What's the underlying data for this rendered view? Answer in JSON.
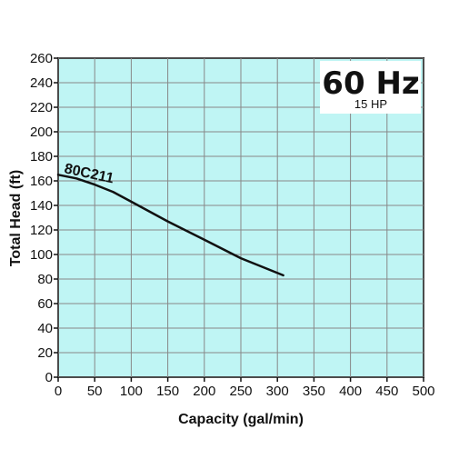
{
  "chart_data": {
    "type": "line",
    "title": "",
    "frequency_label": "60 Hz",
    "power_label": "15 HP",
    "xlabel": "Capacity (gal/min)",
    "ylabel": "Total Head (ft)",
    "xlim": [
      0,
      500
    ],
    "ylim": [
      0,
      260
    ],
    "x_ticks": [
      0,
      50,
      100,
      150,
      200,
      250,
      300,
      350,
      400,
      450,
      500
    ],
    "y_ticks": [
      0,
      20,
      40,
      60,
      80,
      100,
      120,
      140,
      160,
      180,
      200,
      220,
      240,
      260
    ],
    "grid": true,
    "colors": {
      "plot_background": "#bff5f4",
      "grid": "#888888",
      "curve": "#111111"
    },
    "series": [
      {
        "name": "80C211",
        "x": [
          0,
          25,
          50,
          75,
          100,
          150,
          200,
          250,
          308
        ],
        "y": [
          165,
          162,
          157,
          151,
          143,
          127,
          112,
          97,
          83
        ]
      }
    ]
  }
}
